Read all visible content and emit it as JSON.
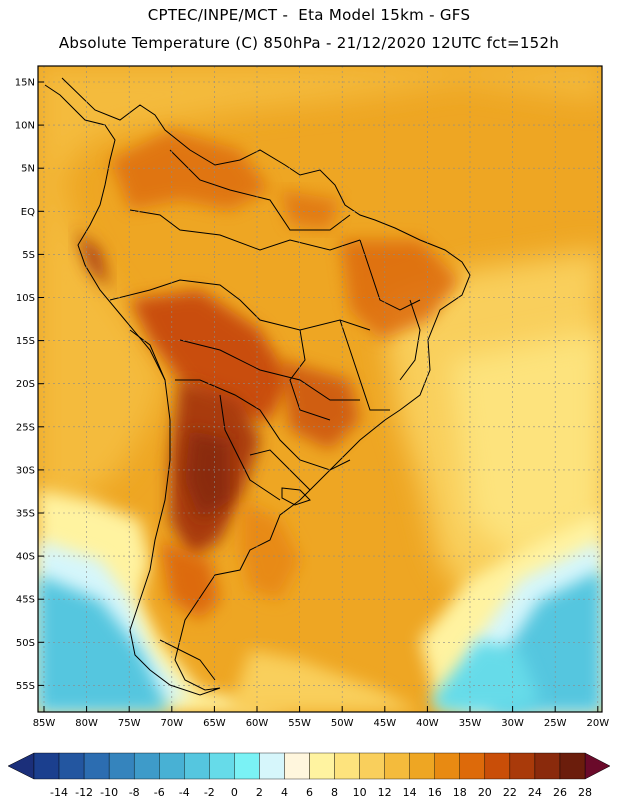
{
  "header": {
    "line1": "CPTEC/INPE/MCT -  Eta Model 15km - GFS",
    "line2": "Absolute Temperature (C) 850hPa - 21/12/2020 12UTC fct=152h"
  },
  "map": {
    "lat_labels": [
      "15N",
      "10N",
      "5N",
      "EQ",
      "5S",
      "10S",
      "15S",
      "20S",
      "25S",
      "30S",
      "35S",
      "40S",
      "45S",
      "50S",
      "55S"
    ],
    "lon_labels": [
      "85W",
      "80W",
      "75W",
      "70W",
      "65W",
      "60W",
      "55W",
      "50W",
      "45W",
      "40W",
      "35W",
      "30W",
      "25W",
      "20W"
    ]
  },
  "colorbar": {
    "labels": [
      "-14",
      "-12",
      "-10",
      "-8",
      "-6",
      "-4",
      "-2",
      "0",
      "2",
      "4",
      "6",
      "8",
      "10",
      "12",
      "14",
      "16",
      "18",
      "20",
      "22",
      "24",
      "26",
      "28"
    ],
    "colors": [
      "#1b3f8e",
      "#2356a0",
      "#2c6db1",
      "#3584bd",
      "#3e9bc9",
      "#48b1d4",
      "#55c6df",
      "#66dbe9",
      "#7af2f5",
      "#d6f6fb",
      "#fff6dd",
      "#fff3a0",
      "#fde37d",
      "#f9cf5c",
      "#f4bb3c",
      "#eea623",
      "#e88a12",
      "#dd6a0a",
      "#c94e08",
      "#a93a0a",
      "#8a2a0c",
      "#6b1d0c"
    ],
    "under_color": "#1b2f7a",
    "over_color": "#6a0a2a"
  }
}
